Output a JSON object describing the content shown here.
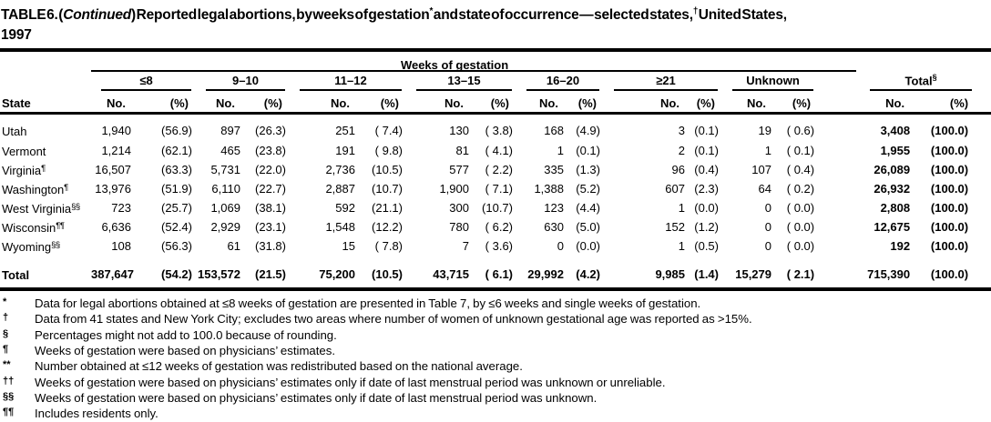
{
  "title": {
    "p1": "TABLE 6. (",
    "italic": "Continued",
    "p2": ") Reported legal abortions, by weeks of gestation",
    "sup1": "*",
    "p3": " and state of occurrence — selected states,",
    "sup2": "†",
    "p4": " United States,",
    "p5": "1997"
  },
  "header": {
    "spanner": "Weeks of gestation",
    "state": "State",
    "no": "No.",
    "pct": "(%)",
    "groups": [
      "≤8",
      "9–10",
      "11–12",
      "13–15",
      "16–20",
      "≥21",
      "Unknown"
    ],
    "total_label": "Total",
    "total_sup": "§"
  },
  "rows": [
    {
      "state": "Utah",
      "sup": "",
      "cells": [
        "1,940",
        "(56.9)",
        "897",
        "(26.3)",
        "251",
        "( 7.4)",
        "130",
        "( 3.8)",
        "168",
        "(4.9)",
        "3",
        "(0.1)",
        "19",
        "( 0.6)",
        "3,408",
        "(100.0)"
      ]
    },
    {
      "state": "Vermont",
      "sup": "",
      "cells": [
        "1,214",
        "(62.1)",
        "465",
        "(23.8)",
        "191",
        "( 9.8)",
        "81",
        "( 4.1)",
        "1",
        "(0.1)",
        "2",
        "(0.1)",
        "1",
        "( 0.1)",
        "1,955",
        "(100.0)"
      ]
    },
    {
      "state": "Virginia",
      "sup": "¶",
      "cells": [
        "16,507",
        "(63.3)",
        "5,731",
        "(22.0)",
        "2,736",
        "(10.5)",
        "577",
        "( 2.2)",
        "335",
        "(1.3)",
        "96",
        "(0.4)",
        "107",
        "( 0.4)",
        "26,089",
        "(100.0)"
      ]
    },
    {
      "state": "Washington",
      "sup": "¶",
      "cells": [
        "13,976",
        "(51.9)",
        "6,110",
        "(22.7)",
        "2,887",
        "(10.7)",
        "1,900",
        "( 7.1)",
        "1,388",
        "(5.2)",
        "607",
        "(2.3)",
        "64",
        "( 0.2)",
        "26,932",
        "(100.0)"
      ]
    },
    {
      "state": "West Virginia",
      "sup": "§§",
      "cells": [
        "723",
        "(25.7)",
        "1,069",
        "(38.1)",
        "592",
        "(21.1)",
        "300",
        "(10.7)",
        "123",
        "(4.4)",
        "1",
        "(0.0)",
        "0",
        "( 0.0)",
        "2,808",
        "(100.0)"
      ]
    },
    {
      "state": "Wisconsin",
      "sup": "¶¶",
      "cells": [
        "6,636",
        "(52.4)",
        "2,929",
        "(23.1)",
        "1,548",
        "(12.2)",
        "780",
        "( 6.2)",
        "630",
        "(5.0)",
        "152",
        "(1.2)",
        "0",
        "( 0.0)",
        "12,675",
        "(100.0)"
      ]
    },
    {
      "state": "Wyoming",
      "sup": "§§",
      "cells": [
        "108",
        "(56.3)",
        "61",
        "(31.8)",
        "15",
        "( 7.8)",
        "7",
        "( 3.6)",
        "0",
        "(0.0)",
        "1",
        "(0.5)",
        "0",
        "( 0.0)",
        "192",
        "(100.0)"
      ]
    }
  ],
  "total_row": {
    "state": "Total",
    "sup": "",
    "cells": [
      "387,647",
      "(54.2)",
      "153,572",
      "(21.5)",
      "75,200",
      "(10.5)",
      "43,715",
      "( 6.1)",
      "29,992",
      "(4.2)",
      "9,985",
      "(1.4)",
      "15,279",
      "( 2.1)",
      "715,390",
      "(100.0)"
    ]
  },
  "footnotes": [
    {
      "symbol": "*",
      "text": "Data for legal abortions obtained at ≤8 weeks of gestation are presented in Table 7, by ≤6 weeks and single weeks of gestation."
    },
    {
      "symbol": "†",
      "text": "Data from 41 states and New York City; excludes two areas where number of women of unknown gestational age was reported as >15%."
    },
    {
      "symbol": "§",
      "text": "Percentages might not add to 100.0 because of rounding."
    },
    {
      "symbol": "¶",
      "text": "Weeks of gestation were based on physicians’ estimates."
    },
    {
      "symbol": "**",
      "text": "Number obtained at ≤12 weeks of gestation was redistributed based on the national average."
    },
    {
      "symbol": "††",
      "text": "Weeks of gestation were based on physicians’ estimates only if date of last menstrual period was unknown or unreliable."
    },
    {
      "symbol": "§§",
      "text": "Weeks of gestation were based on physicians’ estimates only if date of last menstrual period was unknown."
    },
    {
      "symbol": "¶¶",
      "text": "Includes residents only."
    }
  ]
}
